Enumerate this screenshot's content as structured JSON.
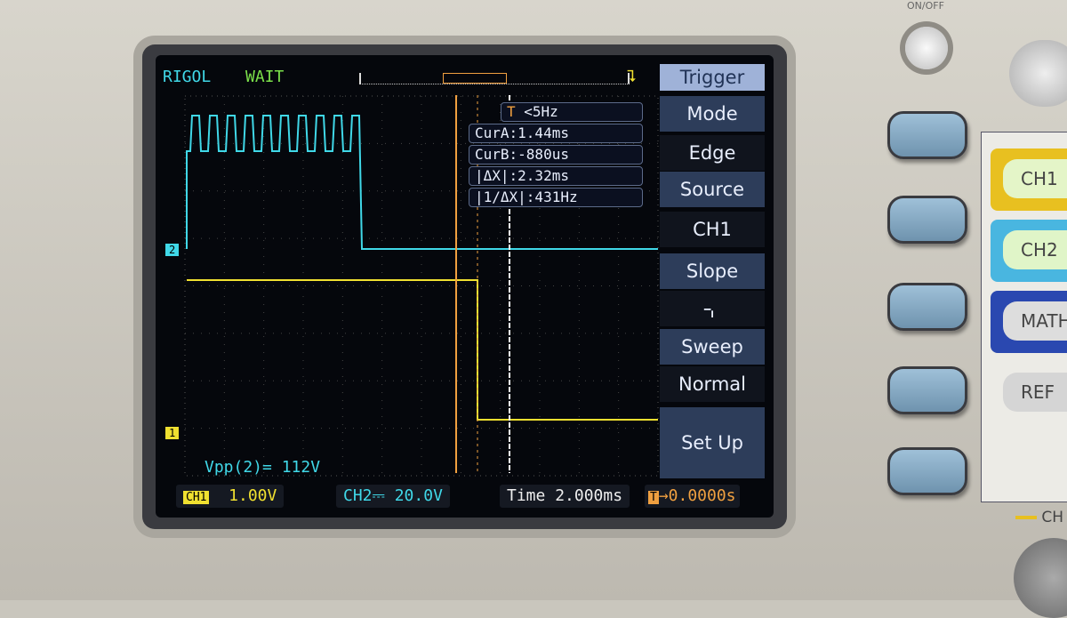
{
  "device": {
    "on_off_label": "ON/OFF"
  },
  "header": {
    "brand": "RIGOL",
    "status": "WAIT"
  },
  "trigger_info": {
    "freq": "<5Hz",
    "cursor_a": "CurA:1.44ms",
    "cursor_b": "CurB:-880us",
    "delta_x": "|ΔX|:2.32ms",
    "inv_delta_x": "|1/ΔX|:431Hz"
  },
  "menu": {
    "title": "Trigger",
    "mode_label": "Mode",
    "mode_value": "Edge",
    "source_label": "Source",
    "source_value": "CH1",
    "slope_label": "Slope",
    "slope_icon": "falling-edge-icon",
    "sweep_label": "Sweep",
    "sweep_value": "Normal",
    "setup_label": "Set Up"
  },
  "measurement": {
    "vpp": "Vpp(2)= 112V"
  },
  "status_bar": {
    "ch1_label": "CH1",
    "ch1_scale": "1.00V",
    "ch2_label": "CH2",
    "ch2_scale": "20.0V",
    "time_label": "Time",
    "time_scale": "2.000ms",
    "trig_offset": "→0.0000s"
  },
  "channel_markers": {
    "ch1": "1",
    "ch2": "2"
  },
  "side_buttons": {
    "ch1": "CH1",
    "ch2": "CH2",
    "math": "MATH",
    "ref": "REF",
    "ch_label": "CH"
  },
  "colors": {
    "ch1": "#f0e030",
    "ch2": "#40d8e8",
    "trigger": "#f0a040",
    "menu_bg": "#2d3d5a"
  }
}
